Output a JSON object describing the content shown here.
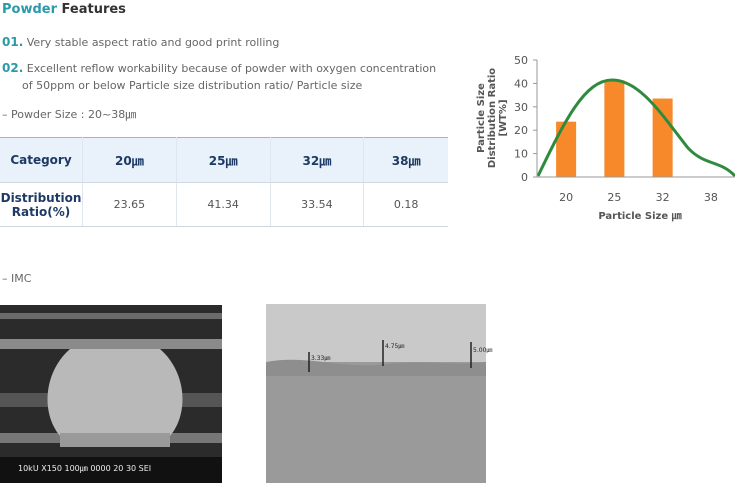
{
  "header": {
    "title_accent": "Powder",
    "title": "Features"
  },
  "items": [
    {
      "num": "01.",
      "text": "Very stable aspect ratio and good print rolling"
    },
    {
      "num": "02.",
      "text": "Excellent reflow workability because of powder with oxygen concentration",
      "text2": "of 50ppm or below Particle size distribution ratio/ Particle size"
    }
  ],
  "powder_size": "– Powder Size : 20~38㎛",
  "table": {
    "header": [
      "Category",
      "20㎛",
      "25㎛",
      "32㎛",
      "38㎛"
    ],
    "rows": [
      [
        "Distribution",
        "Ratio(%)"
      ],
      [
        "23.65",
        "41.34",
        "33.54",
        "0.18"
      ]
    ]
  },
  "chart_data": {
    "type": "bar",
    "categories": [
      "20",
      "25",
      "32",
      "38"
    ],
    "values": [
      23.65,
      41.34,
      33.54,
      0.18
    ],
    "color": "#f7892b",
    "ylim": [
      0,
      50
    ],
    "yticks": [
      0,
      10,
      20,
      30,
      40,
      50
    ],
    "ylabel": [
      "Particle Size",
      "Distribution Ratio",
      "[WT%]"
    ],
    "xlabel": "Particle Size ㎛"
  },
  "imc": {
    "label": "– IMC",
    "sem_caption": "10kU   X150  100㎛  0000 20 30 SEI",
    "marks": [
      "3.33㎛",
      "4.75㎛",
      "5.00㎛"
    ]
  }
}
